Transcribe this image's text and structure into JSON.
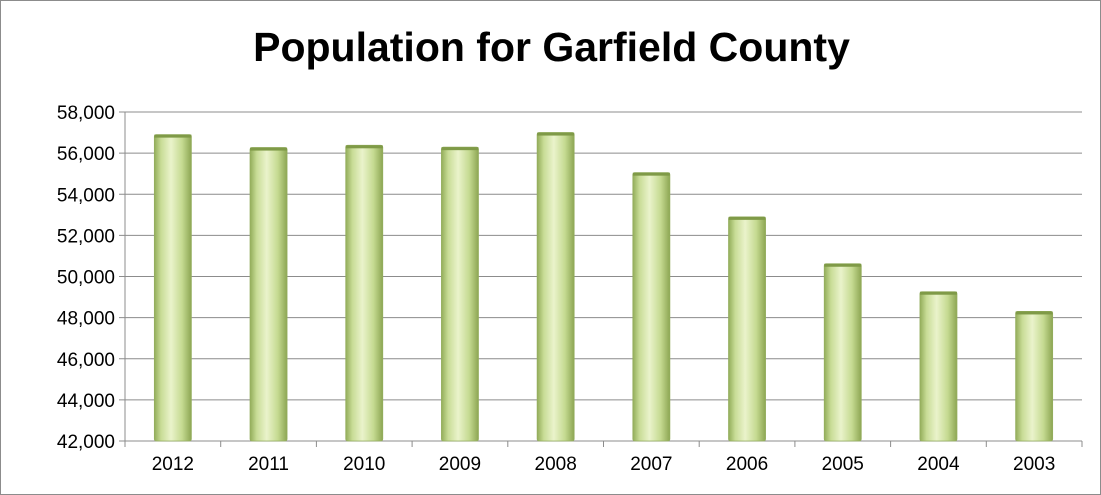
{
  "chart_data": {
    "type": "bar",
    "title": "Population for Garfield County",
    "xlabel": "",
    "ylabel": "",
    "categories": [
      "2012",
      "2011",
      "2010",
      "2009",
      "2008",
      "2007",
      "2006",
      "2005",
      "2004",
      "2003"
    ],
    "values": [
      56900,
      56270,
      56380,
      56290,
      57000,
      55050,
      52900,
      50620,
      49260,
      48300
    ],
    "ylim": [
      42000,
      58000
    ],
    "yticks": [
      42000,
      44000,
      46000,
      48000,
      50000,
      52000,
      54000,
      56000,
      58000
    ],
    "ytick_labels": [
      "42,000",
      "44,000",
      "46,000",
      "48,000",
      "50,000",
      "52,000",
      "54,000",
      "56,000",
      "58,000"
    ],
    "grid": true,
    "legend": "none",
    "colors": {
      "bar_light": "#e6f0c3",
      "bar_mid": "#c3d98f",
      "bar_dark": "#8faa55",
      "grid": "#8c8c8c"
    }
  }
}
